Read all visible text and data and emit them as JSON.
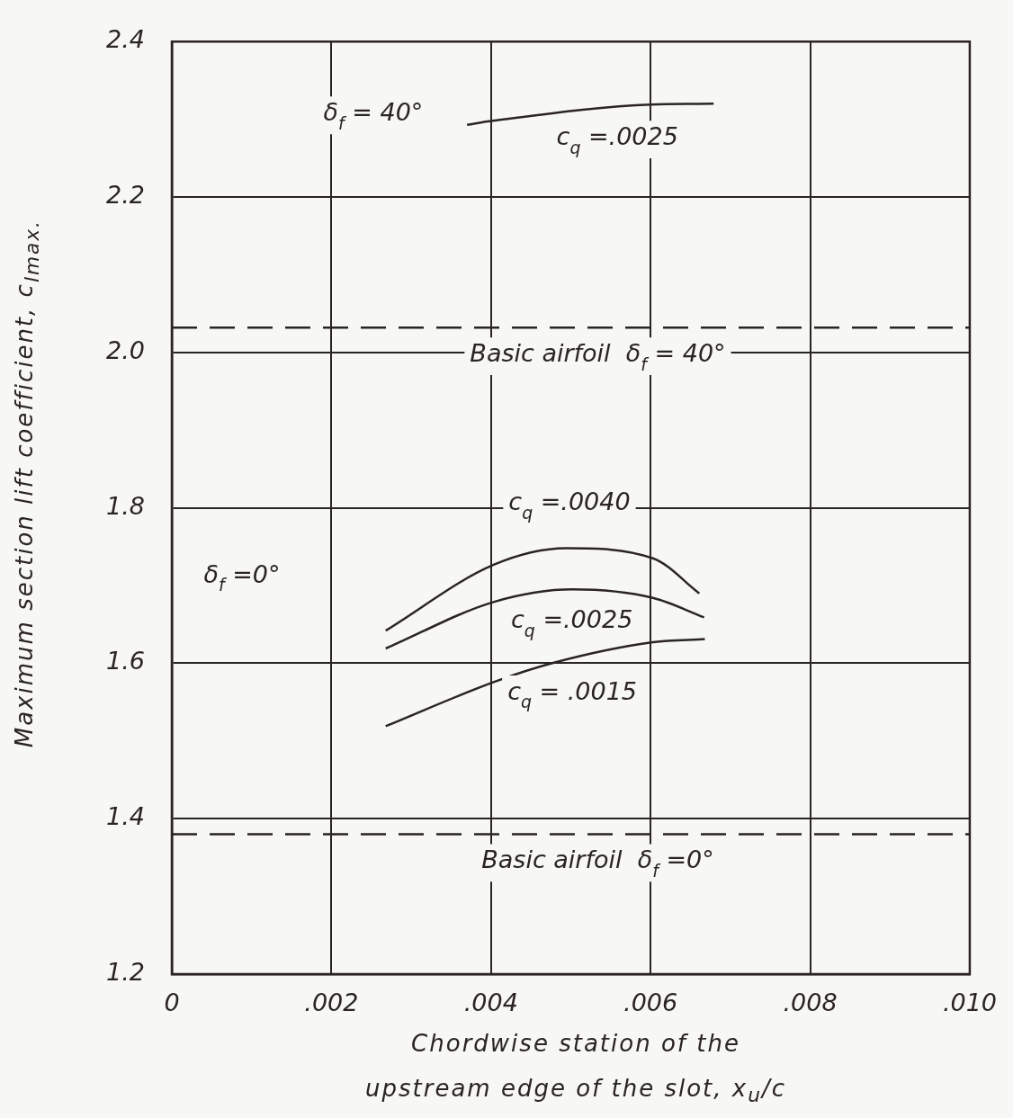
{
  "chart_data": {
    "type": "line",
    "xlabel": "Chordwise station of the upstream edge of the slot, x$_{u}$/c",
    "ylabel": "Maximum section lift coefficient, c$_{lmax.}$",
    "xlim": [
      0,
      0.01
    ],
    "ylim": [
      1.2,
      2.4
    ],
    "xticks": [
      0,
      {
        "value": 0.002,
        "label": ".002"
      },
      {
        "value": 0.004,
        "label": ".004"
      },
      {
        "value": 0.006,
        "label": ".006"
      },
      {
        "value": 0.008,
        "label": ".008"
      },
      {
        "value": 0.01,
        "label": ".010"
      }
    ],
    "yticks": [
      1.2,
      1.4,
      1.6,
      1.8,
      {
        "value": 2,
        "label": "2.0"
      },
      2.2,
      2.4
    ],
    "grid": true,
    "legend": false,
    "marker": "none",
    "line_style": "solid",
    "series": [
      {
        "name": "c$_{q}$ =.0025",
        "color": "#2a2522",
        "x": [
          0.0037,
          0.00402,
          0.00601,
          0.00679
        ],
        "values": [
          2.293,
          2.298,
          2.319,
          2.32
        ]
      },
      {
        "name": "c$_{q}$ =.0040",
        "color": "#2a2522",
        "x": [
          0.00268,
          0.00404,
          0.00494,
          0.00603,
          0.00661
        ],
        "values": [
          1.642,
          1.727,
          1.748,
          1.735,
          1.69
        ]
      },
      {
        "name": "c$_{q}$ =.0025",
        "color": "#2a2522",
        "x": [
          0.00268,
          0.00404,
          0.00502,
          0.00603,
          0.00667
        ],
        "values": [
          1.619,
          1.679,
          1.695,
          1.684,
          1.659
        ]
      },
      {
        "name": "c$_{q}$ = .0015",
        "color": "#2a2522",
        "x": [
          0.00268,
          0.00404,
          0.0048,
          0.00603,
          0.00668
        ],
        "values": [
          1.519,
          1.576,
          1.601,
          1.627,
          1.631
        ]
      },
      {
        "name": "Basic airfoil  δ$_{f}$ = 40°",
        "color": "#2a2522",
        "line_style": "dashed",
        "x": [
          0,
          0.01
        ],
        "values": [
          2.032,
          2.032
        ]
      },
      {
        "name": "Basic airfoil  δ$_{f}$ =0°",
        "color": "#2a2522",
        "line_style": "dashed",
        "x": [
          0,
          0.01
        ],
        "values": [
          1.38,
          1.38
        ]
      }
    ],
    "annotations": [
      "δ$_{f}$ = 40°",
      "δ$_{f}$ =0°"
    ]
  }
}
